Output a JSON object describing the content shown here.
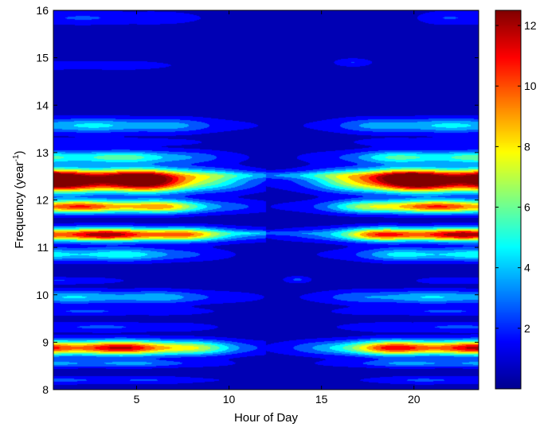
{
  "chart_data": {
    "type": "heatmap",
    "title": "",
    "xlabel": "Hour of Day",
    "ylabel_text": "Frequency (year",
    "ylabel_sup": "-1",
    "ylabel_close": ")",
    "xlim": [
      0.5,
      23.5
    ],
    "ylim": [
      8,
      16
    ],
    "x_ticks": [
      5,
      10,
      15,
      20
    ],
    "y_ticks": [
      8,
      9,
      10,
      11,
      12,
      13,
      14,
      15,
      16
    ],
    "colorbar": {
      "min": 0,
      "max": 12.5,
      "ticks": [
        2,
        4,
        6,
        8,
        10,
        12
      ]
    },
    "colormap": [
      "#00008f",
      "#0000ff",
      "#0080ff",
      "#00ffff",
      "#80ff80",
      "#ffff00",
      "#ff8000",
      "#ff0000",
      "#800000"
    ],
    "background_value": 0.5,
    "bands": [
      {
        "freq": 15.84,
        "height": 0.1,
        "peak": 1.7,
        "hw_left": 7.3,
        "hw_right": 3.0
      },
      {
        "freq": 14.84,
        "height": 0.07,
        "peak": 1.4,
        "hw_left": 6.3,
        "hw_right": 0.0
      },
      {
        "freq": 13.57,
        "height": 0.11,
        "peak": 4.0,
        "hw_left": 8.2,
        "hw_right": 7.2
      },
      {
        "freq": 13.22,
        "height": 0.06,
        "peak": 1.3,
        "hw_left": 7.5,
        "hw_right": 6.5
      },
      {
        "freq": 12.9,
        "height": 0.1,
        "peak": 5.5,
        "hw_left": 7.6,
        "hw_right": 6.8
      },
      {
        "freq": 12.5,
        "height": 0.12,
        "peak": 12.3,
        "hw_left": 8.2,
        "hw_right": 7.3
      },
      {
        "freq": 12.3,
        "height": 0.12,
        "peak": 9.8,
        "hw_left": 8.0,
        "hw_right": 7.0
      },
      {
        "freq": 11.86,
        "height": 0.1,
        "peak": 10.2,
        "hw_left": 8.0,
        "hw_right": 7.0
      },
      {
        "freq": 11.27,
        "height": 0.1,
        "peak": 12.0,
        "hw_left": 9.0,
        "hw_right": 7.3
      },
      {
        "freq": 10.85,
        "height": 0.1,
        "peak": 4.6,
        "hw_left": 7.2,
        "hw_right": 6.3
      },
      {
        "freq": 10.3,
        "height": 0.05,
        "peak": 1.6,
        "hw_left": 3.5,
        "hw_right": 3.0
      },
      {
        "freq": 9.95,
        "height": 0.1,
        "peak": 3.8,
        "hw_left": 8.5,
        "hw_right": 7.5
      },
      {
        "freq": 9.65,
        "height": 0.06,
        "peak": 1.7,
        "hw_left": 8.0,
        "hw_right": 7.2
      },
      {
        "freq": 9.32,
        "height": 0.07,
        "peak": 1.8,
        "hw_left": 8.0,
        "hw_right": 7.0
      },
      {
        "freq": 8.88,
        "height": 0.11,
        "peak": 11.5,
        "hw_left": 8.5,
        "hw_right": 7.4
      },
      {
        "freq": 8.55,
        "height": 0.06,
        "peak": 3.0,
        "hw_left": 7.6,
        "hw_right": 6.8
      },
      {
        "freq": 8.2,
        "height": 0.06,
        "peak": 1.8,
        "hw_left": 8.0,
        "hw_right": 5.8
      }
    ],
    "features": [
      {
        "x": 12.8,
        "freq": 12.52,
        "wx": 3.3,
        "hy": 0.05,
        "peak": 1.8
      },
      {
        "x": 13.7,
        "freq": 10.32,
        "wx": 0.5,
        "hy": 0.05,
        "peak": 1.8
      },
      {
        "x": 16.7,
        "freq": 14.9,
        "wx": 0.7,
        "hy": 0.06,
        "peak": 1.6
      },
      {
        "x": 12.0,
        "freq": 11.3,
        "wx": 1.8,
        "hy": 0.03,
        "peak": 1.5
      }
    ]
  }
}
